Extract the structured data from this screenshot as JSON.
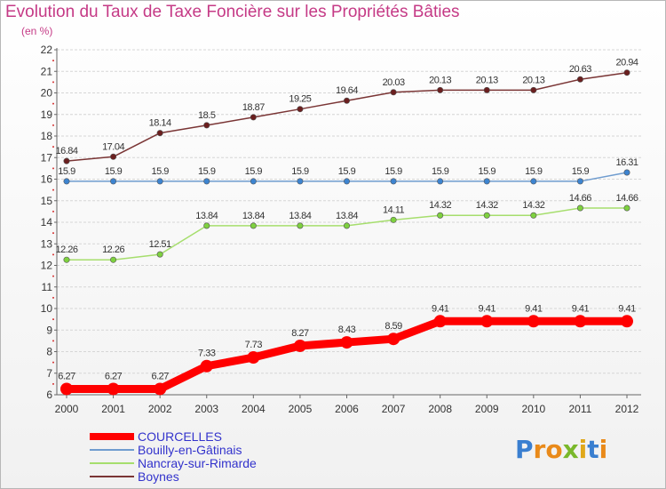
{
  "title": "Evolution du Taux de Taxe Foncière sur les Propriétés Bâties",
  "subtitle": "(en %)",
  "colors": {
    "title": "#c53a86",
    "grid": "#d6d6d6",
    "axis": "#666666",
    "label": "#333333",
    "legend_text": "#3333cc"
  },
  "logo": {
    "text": "Proxiti",
    "letters": [
      {
        "ch": "P",
        "color": "#3a7fd0"
      },
      {
        "ch": "r",
        "color": "#e98a1a"
      },
      {
        "ch": "o",
        "color": "#e98a1a"
      },
      {
        "ch": "x",
        "color": "#7ab82b"
      },
      {
        "ch": "i",
        "color": "#e0a81a"
      },
      {
        "ch": "t",
        "color": "#3a7fd0"
      },
      {
        "ch": "i",
        "color": "#e98a1a"
      }
    ]
  },
  "chart_data": {
    "type": "line",
    "title": "Evolution du Taux de Taxe Foncière sur les Propriétés Bâties",
    "ylabel": "(en %)",
    "xlabel": "",
    "x": [
      "2000",
      "2001",
      "2002",
      "2003",
      "2004",
      "2005",
      "2006",
      "2007",
      "2008",
      "2009",
      "2010",
      "2011",
      "2012"
    ],
    "ylim": [
      6,
      22
    ],
    "yticks": [
      6,
      7,
      8,
      9,
      10,
      11,
      12,
      13,
      14,
      15,
      16,
      17,
      18,
      19,
      20,
      21,
      22
    ],
    "grid": true,
    "legend_position": "bottom-left",
    "series": [
      {
        "name": "COURCELLES",
        "color": "#ff0000",
        "marker_color": "#ff0000",
        "width": "thick",
        "values": [
          6.27,
          6.27,
          6.27,
          7.33,
          7.73,
          8.27,
          8.43,
          8.59,
          9.41,
          9.41,
          9.41,
          9.41,
          9.41
        ],
        "labels": [
          "6.27",
          "6.27",
          "6.27",
          "7.33",
          "7.73",
          "8.27",
          "8.43",
          "8.59",
          "9.41",
          "9.41",
          "9.41",
          "9.41",
          "9.41"
        ]
      },
      {
        "name": "Bouilly-en-Gâtinais",
        "color": "#6f9ccf",
        "marker_color": "#3d84d0",
        "width": "thin",
        "values": [
          15.9,
          15.9,
          15.9,
          15.9,
          15.9,
          15.9,
          15.9,
          15.9,
          15.9,
          15.9,
          15.9,
          15.9,
          16.31
        ],
        "labels": [
          "15.9",
          "15.9",
          "15.9",
          "15.9",
          "15.9",
          "15.9",
          "15.9",
          "15.9",
          "15.9",
          "15.9",
          "15.9",
          "15.9",
          "16.31"
        ]
      },
      {
        "name": "Nancray-sur-Rimarde",
        "color": "#a6de6d",
        "marker_color": "#7ed13f",
        "width": "thin",
        "values": [
          12.26,
          12.26,
          12.51,
          13.84,
          13.84,
          13.84,
          13.84,
          14.11,
          14.32,
          14.32,
          14.32,
          14.66,
          14.66
        ],
        "labels": [
          "12.26",
          "12.26",
          "12.51",
          "13.84",
          "13.84",
          "13.84",
          "13.84",
          "14.11",
          "14.32",
          "14.32",
          "14.32",
          "14.66",
          "14.66"
        ]
      },
      {
        "name": "Boynes",
        "color": "#7a3535",
        "marker_color": "#6b1f1f",
        "width": "thin",
        "values": [
          16.84,
          17.04,
          18.14,
          18.5,
          18.87,
          19.25,
          19.64,
          20.03,
          20.13,
          20.13,
          20.13,
          20.63,
          20.94
        ],
        "labels": [
          "16.84",
          "17.04",
          "18.14",
          "18.5",
          "18.87",
          "19.25",
          "19.64",
          "20.03",
          "20.13",
          "20.13",
          "20.13",
          "20.63",
          "20.94"
        ]
      }
    ]
  }
}
